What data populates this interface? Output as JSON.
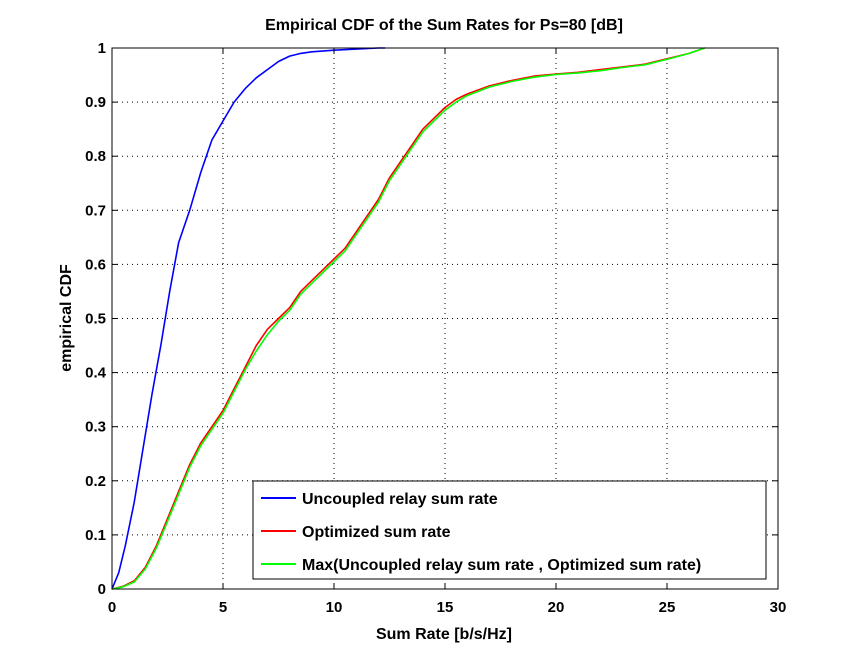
{
  "chart_data": {
    "type": "line",
    "title": "Empirical CDF of the Sum Rates for Ps=80 [dB]",
    "xlabel": "Sum Rate [b/s/Hz]",
    "ylabel": "empirical CDF",
    "xlim": [
      0,
      30
    ],
    "ylim": [
      0,
      1
    ],
    "xticks": [
      "0",
      "5",
      "10",
      "15",
      "20",
      "25",
      "30"
    ],
    "yticks": [
      "0",
      "0.1",
      "0.2",
      "0.3",
      "0.4",
      "0.5",
      "0.6",
      "0.7",
      "0.8",
      "0.9",
      "1"
    ],
    "grid": true,
    "legend_position": "bottom-right",
    "series": [
      {
        "name": "Uncoupled relay sum rate",
        "color": "#0000ff",
        "x": [
          0,
          0.3,
          0.6,
          1.0,
          1.4,
          1.8,
          2.2,
          2.6,
          3.0,
          3.5,
          4.0,
          4.5,
          5.0,
          5.5,
          6.0,
          6.5,
          7.0,
          7.5,
          8.0,
          8.5,
          9.0,
          10.0,
          11.0,
          12.0,
          12.3
        ],
        "y": [
          0,
          0.03,
          0.08,
          0.16,
          0.26,
          0.36,
          0.45,
          0.55,
          0.64,
          0.7,
          0.77,
          0.83,
          0.865,
          0.9,
          0.925,
          0.945,
          0.96,
          0.975,
          0.985,
          0.99,
          0.993,
          0.996,
          0.998,
          1.0,
          1.0
        ]
      },
      {
        "name": "Optimized sum rate",
        "color": "#ff0000",
        "x": [
          0,
          0.5,
          1.0,
          1.5,
          2.0,
          2.5,
          3.0,
          3.5,
          4.0,
          4.5,
          5.0,
          5.5,
          6.0,
          6.5,
          7.0,
          7.5,
          8.0,
          8.5,
          9.0,
          9.5,
          10.0,
          10.5,
          11.0,
          11.5,
          12.0,
          12.5,
          13.0,
          13.5,
          14.0,
          14.5,
          15.0,
          15.5,
          16.0,
          17.0,
          18.0,
          19.0,
          20.0,
          21.0,
          22.0,
          23.0,
          24.0,
          25.0,
          26.0,
          26.7
        ],
        "y": [
          0,
          0.005,
          0.015,
          0.04,
          0.08,
          0.13,
          0.18,
          0.23,
          0.27,
          0.3,
          0.33,
          0.37,
          0.41,
          0.45,
          0.48,
          0.5,
          0.52,
          0.55,
          0.57,
          0.59,
          0.61,
          0.63,
          0.66,
          0.69,
          0.72,
          0.76,
          0.79,
          0.82,
          0.85,
          0.87,
          0.89,
          0.905,
          0.915,
          0.93,
          0.94,
          0.948,
          0.952,
          0.955,
          0.96,
          0.965,
          0.97,
          0.98,
          0.99,
          1.0
        ]
      },
      {
        "name": "Max(Uncoupled relay sum rate , Optimized sum rate)",
        "color": "#00ff00",
        "x": [
          0,
          0.5,
          1.0,
          1.5,
          2.0,
          2.5,
          3.0,
          3.5,
          4.0,
          4.5,
          5.0,
          5.5,
          6.0,
          6.5,
          7.0,
          7.5,
          8.0,
          8.5,
          9.0,
          9.5,
          10.0,
          10.5,
          11.0,
          11.5,
          12.0,
          12.5,
          13.0,
          13.5,
          14.0,
          14.5,
          15.0,
          15.5,
          16.0,
          17.0,
          18.0,
          19.0,
          20.0,
          21.0,
          22.0,
          23.0,
          24.0,
          25.0,
          26.0,
          26.7
        ],
        "y": [
          0,
          0.004,
          0.013,
          0.037,
          0.076,
          0.125,
          0.175,
          0.225,
          0.265,
          0.295,
          0.325,
          0.365,
          0.405,
          0.44,
          0.47,
          0.495,
          0.515,
          0.545,
          0.565,
          0.585,
          0.605,
          0.625,
          0.655,
          0.685,
          0.715,
          0.755,
          0.785,
          0.815,
          0.845,
          0.865,
          0.885,
          0.9,
          0.912,
          0.928,
          0.938,
          0.946,
          0.951,
          0.954,
          0.958,
          0.964,
          0.969,
          0.979,
          0.99,
          1.0
        ]
      }
    ]
  }
}
